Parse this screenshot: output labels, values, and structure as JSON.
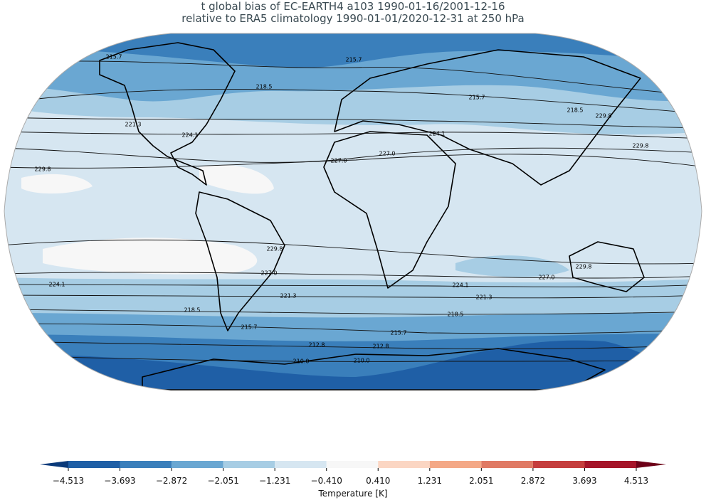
{
  "header": {
    "title_line1": "t global bias of EC-EARTH4 a103 1990-01-16/2001-12-16",
    "title_line2": "relative to ERA5 climatology 1990-01-01/2020-12-31 at 250 hPa"
  },
  "contour_labels": [
    "210.0",
    "212.8",
    "215.7",
    "218.5",
    "221.3",
    "224.1",
    "227.0",
    "229.8"
  ],
  "colorbar": {
    "label": "Temperature [K]",
    "ticks": [
      {
        "value": -4.513,
        "label": "−4.513"
      },
      {
        "value": -3.693,
        "label": "−3.693"
      },
      {
        "value": -2.872,
        "label": "−2.872"
      },
      {
        "value": -2.051,
        "label": "−2.051"
      },
      {
        "value": -1.231,
        "label": "−1.231"
      },
      {
        "value": -0.41,
        "label": "−0.410"
      },
      {
        "value": 0.41,
        "label": "0.410"
      },
      {
        "value": 1.231,
        "label": "1.231"
      },
      {
        "value": 2.051,
        "label": "2.051"
      },
      {
        "value": 2.872,
        "label": "2.872"
      },
      {
        "value": 3.693,
        "label": "3.693"
      },
      {
        "value": 4.513,
        "label": "4.513"
      }
    ],
    "colors": [
      "#1f5fa6",
      "#3a7fbb",
      "#6aa7d2",
      "#a7cde4",
      "#d6e6f1",
      "#f7f7f7",
      "#fbd6c3",
      "#f4a886",
      "#e07a64",
      "#c53e3d",
      "#a51429"
    ],
    "extend_colors": [
      "#0a3a7a",
      "#6d0018"
    ]
  }
}
